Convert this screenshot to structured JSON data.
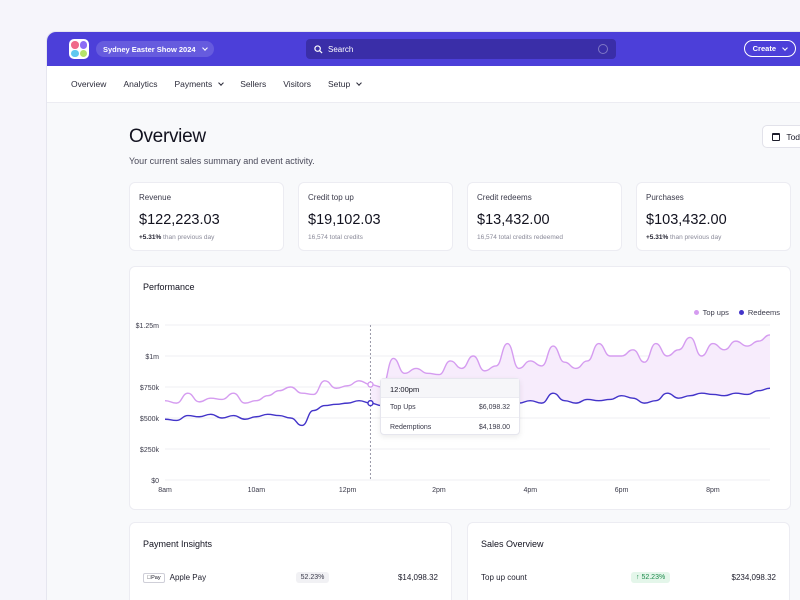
{
  "header": {
    "event_name": "Sydney Easter Show 2024",
    "search_placeholder": "Search",
    "create_label": "Create"
  },
  "nav": {
    "items": [
      {
        "label": "Overview",
        "has_dropdown": false
      },
      {
        "label": "Analytics",
        "has_dropdown": false
      },
      {
        "label": "Payments",
        "has_dropdown": true
      },
      {
        "label": "Sellers",
        "has_dropdown": false
      },
      {
        "label": "Visitors",
        "has_dropdown": false
      },
      {
        "label": "Setup",
        "has_dropdown": true
      }
    ]
  },
  "page": {
    "title": "Overview",
    "subtitle": "Your current sales summary and event activity.",
    "date_button": "Today"
  },
  "cards": [
    {
      "label": "Revenue",
      "value": "$122,223.03",
      "change": "+5.31%",
      "note": "than previous day"
    },
    {
      "label": "Credit top up",
      "value": "$19,102.03",
      "change": "",
      "note": "16,574 total credits"
    },
    {
      "label": "Credit redeems",
      "value": "$13,432.00",
      "change": "",
      "note": "16,574 total credits redeemed"
    },
    {
      "label": "Purchases",
      "value": "$103,432.00",
      "change": "+5.31%",
      "note": "than previous day"
    }
  ],
  "performance": {
    "title": "Performance",
    "legend": [
      "Top ups",
      "Redeems"
    ],
    "tooltip": {
      "time": "12:00pm",
      "rows": [
        {
          "label": "Top Ups",
          "value": "$6,098.32"
        },
        {
          "label": "Redemptions",
          "value": "$4,198.00"
        }
      ]
    }
  },
  "chart_data": {
    "type": "line",
    "x_ticks": [
      "8am",
      "10am",
      "12pm",
      "2pm",
      "4pm",
      "6pm",
      "8pm"
    ],
    "y_ticks": [
      "$0",
      "$250k",
      "$500k",
      "$750k",
      "$1m",
      "$1.25m"
    ],
    "ylim": [
      0,
      1250000
    ],
    "colors": {
      "top_ups": "#d59cf0",
      "redeems": "#4334c9"
    },
    "series": [
      {
        "name": "Top ups",
        "x": [
          0,
          0.25,
          0.5,
          0.75,
          1,
          1.25,
          1.5,
          1.75,
          2,
          2.25,
          2.5,
          2.75,
          3,
          3.25,
          3.5,
          3.75,
          4,
          4.25,
          4.5,
          4.75,
          5,
          5.25,
          5.5,
          5.75,
          6,
          6.25,
          6.5,
          6.75,
          7,
          7.25,
          7.5,
          7.75,
          8,
          8.25,
          8.5,
          8.75,
          9,
          9.25,
          9.5,
          9.75,
          10,
          10.25,
          10.5,
          10.75,
          11,
          11.25,
          11.5,
          11.75,
          12,
          12.25,
          12.5,
          12.75,
          13,
          13.25
        ],
        "values": [
          640000,
          620000,
          700000,
          630000,
          660000,
          650000,
          700000,
          620000,
          640000,
          680000,
          720000,
          750000,
          700000,
          690000,
          800000,
          740000,
          760000,
          800000,
          770000,
          750000,
          980000,
          860000,
          900000,
          860000,
          850000,
          960000,
          900000,
          1000000,
          880000,
          920000,
          1100000,
          900000,
          960000,
          920000,
          1080000,
          950000,
          900000,
          960000,
          1100000,
          1000000,
          1000000,
          1050000,
          950000,
          1100000,
          1000000,
          1050000,
          1150000,
          1000000,
          1100000,
          1050000,
          1120000,
          1080000,
          1120000,
          1170000
        ]
      },
      {
        "name": "Redeems",
        "x": [
          0,
          0.25,
          0.5,
          0.75,
          1,
          1.25,
          1.5,
          1.75,
          2,
          2.25,
          2.5,
          2.75,
          3,
          3.25,
          3.5,
          3.75,
          4,
          4.25,
          4.5,
          4.75,
          5,
          5.25,
          5.5,
          5.75,
          6,
          6.25,
          6.5,
          6.75,
          7,
          7.25,
          7.5,
          7.75,
          8,
          8.25,
          8.5,
          8.75,
          9,
          9.25,
          9.5,
          9.75,
          10,
          10.25,
          10.5,
          10.75,
          11,
          11.25,
          11.5,
          11.75,
          12,
          12.25,
          12.5,
          12.75,
          13,
          13.25
        ],
        "values": [
          490000,
          480000,
          520000,
          510000,
          530000,
          500000,
          520000,
          490000,
          510000,
          530000,
          520000,
          500000,
          440000,
          560000,
          600000,
          610000,
          620000,
          640000,
          620000,
          600000,
          660000,
          650000,
          660000,
          620000,
          650000,
          660000,
          620000,
          640000,
          610000,
          640000,
          700000,
          620000,
          640000,
          620000,
          700000,
          640000,
          620000,
          650000,
          640000,
          650000,
          680000,
          660000,
          620000,
          640000,
          700000,
          660000,
          680000,
          700000,
          690000,
          680000,
          700000,
          690000,
          720000,
          740000
        ]
      }
    ],
    "highlight_x": 4.5
  },
  "payment_insights": {
    "title": "Payment Insights",
    "rows": [
      {
        "method": "Apple Pay",
        "logo": "Pay",
        "percent": "52.23%",
        "amount": "$14,098.32"
      }
    ]
  },
  "sales_overview": {
    "title": "Sales Overview",
    "rows": [
      {
        "label": "Top up count",
        "percent": "52.23%",
        "amount": "$234,098.32"
      }
    ]
  }
}
